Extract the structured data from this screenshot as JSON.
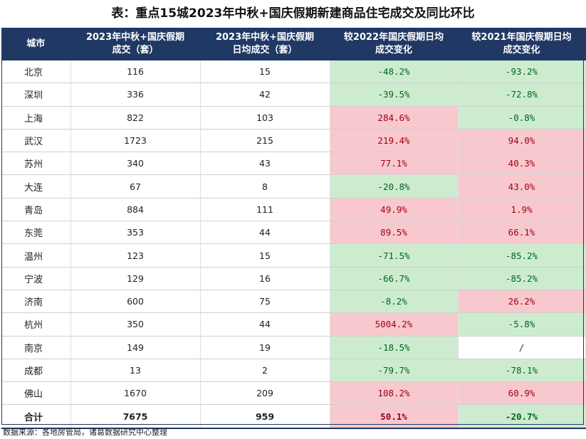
{
  "title": "表：重点15城2023年中秋+国庆假期新建商品住宅成交及同比环比",
  "headers": {
    "city": "城市",
    "total_line1": "2023年中秋+国庆假期",
    "total_line2": "成交（套）",
    "daily_line1": "2023年中秋+国庆假期",
    "daily_line2": "日均成交（套）",
    "yoy2022_line1": "较2022年国庆假期日均",
    "yoy2022_line2": "成交变化",
    "yoy2021_line1": "较2021年国庆假期日均",
    "yoy2021_line2": "成交变化"
  },
  "rows": [
    {
      "city": "北京",
      "total": "116",
      "daily": "15",
      "vs2022": "-48.2%",
      "vs2021": "-93.2%"
    },
    {
      "city": "深圳",
      "total": "336",
      "daily": "42",
      "vs2022": "-39.5%",
      "vs2021": "-72.8%"
    },
    {
      "city": "上海",
      "total": "822",
      "daily": "103",
      "vs2022": "284.6%",
      "vs2021": "-0.8%"
    },
    {
      "city": "武汉",
      "total": "1723",
      "daily": "215",
      "vs2022": "219.4%",
      "vs2021": "94.0%"
    },
    {
      "city": "苏州",
      "total": "340",
      "daily": "43",
      "vs2022": "77.1%",
      "vs2021": "40.3%"
    },
    {
      "city": "大连",
      "total": "67",
      "daily": "8",
      "vs2022": "-20.8%",
      "vs2021": "43.0%"
    },
    {
      "city": "青岛",
      "total": "884",
      "daily": "111",
      "vs2022": "49.9%",
      "vs2021": "1.9%"
    },
    {
      "city": "东莞",
      "total": "353",
      "daily": "44",
      "vs2022": "89.5%",
      "vs2021": "66.1%"
    },
    {
      "city": "温州",
      "total": "123",
      "daily": "15",
      "vs2022": "-71.5%",
      "vs2021": "-85.2%"
    },
    {
      "city": "宁波",
      "total": "129",
      "daily": "16",
      "vs2022": "-66.7%",
      "vs2021": "-85.2%"
    },
    {
      "city": "济南",
      "total": "600",
      "daily": "75",
      "vs2022": "-8.2%",
      "vs2021": "26.2%"
    },
    {
      "city": "杭州",
      "total": "350",
      "daily": "44",
      "vs2022": "5004.2%",
      "vs2021": "-5.8%"
    },
    {
      "city": "南京",
      "total": "149",
      "daily": "19",
      "vs2022": "-18.5%",
      "vs2021": "/"
    },
    {
      "city": "成都",
      "total": "13",
      "daily": "2",
      "vs2022": "-79.7%",
      "vs2021": "-78.1%"
    },
    {
      "city": "佛山",
      "total": "1670",
      "daily": "209",
      "vs2022": "108.2%",
      "vs2021": "60.9%"
    }
  ],
  "total_row": {
    "city": "合计",
    "total": "7675",
    "daily": "959",
    "vs2022": "50.1%",
    "vs2021": "-20.7%"
  },
  "source": "数据来源：各地房管局，诸葛数据研究中心整理",
  "colors": {
    "header_bg": "#203864",
    "positive_bg": "#f8c8cf",
    "negative_bg": "#cdeccf"
  }
}
